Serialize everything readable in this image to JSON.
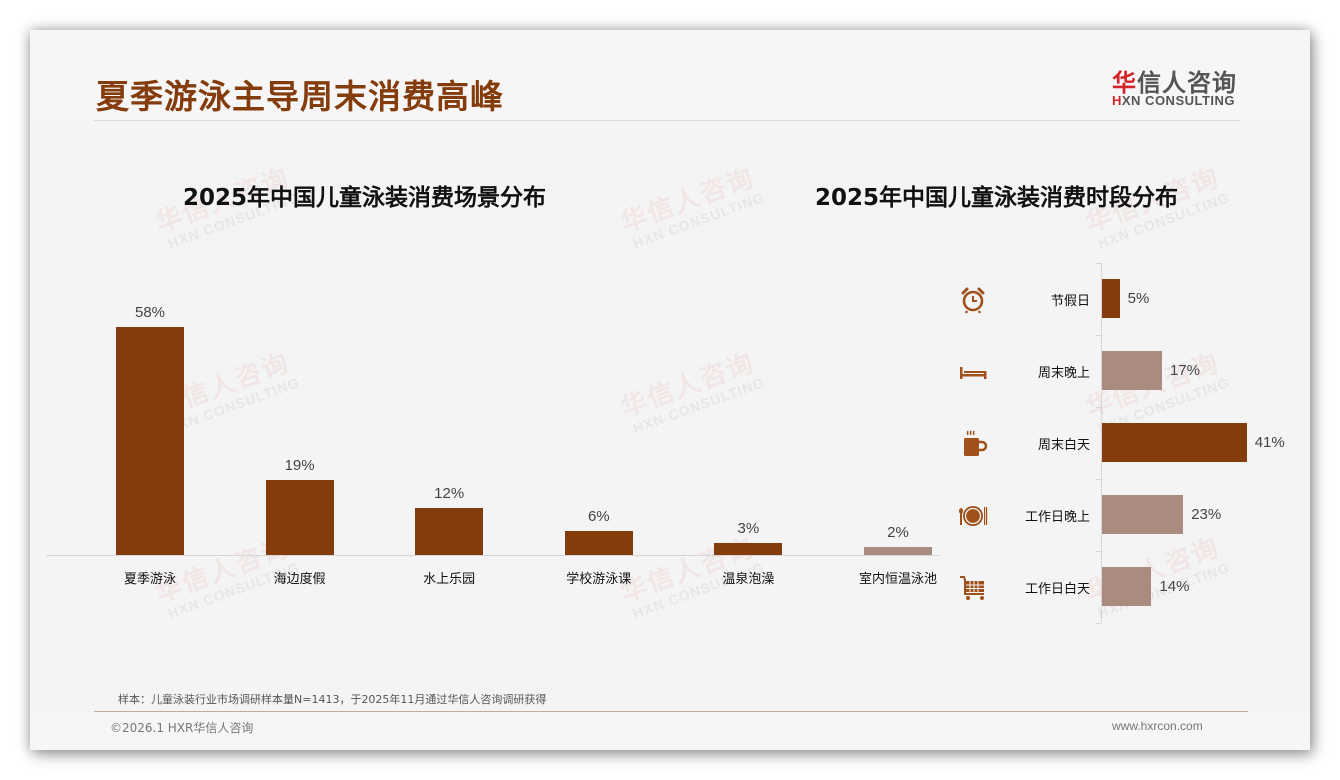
{
  "header": {
    "title": "夏季游泳主导周末消费高峰",
    "logo_cn_first": "华",
    "logo_cn_rest": "信人咨询",
    "logo_en_first": "H",
    "logo_en_rest": "XN CONSULTING"
  },
  "watermark": {
    "cn": "华信人咨询",
    "en": "HXN CONSULTING"
  },
  "colors": {
    "primary_bar": "#843c0c",
    "secondary_bar": "#a98b80",
    "title": "#843c0c",
    "logo_red": "#d3242a"
  },
  "chart_data": [
    {
      "type": "bar",
      "orientation": "vertical",
      "title": "2025年中国儿童泳装消费场景分布",
      "categories": [
        "夏季游泳",
        "海边度假",
        "水上乐园",
        "学校游泳课",
        "温泉泡澡",
        "室内恒温泳池"
      ],
      "values": [
        58,
        19,
        12,
        6,
        3,
        2
      ],
      "value_labels": [
        "58%",
        "19%",
        "12%",
        "6%",
        "3%",
        "2%"
      ],
      "bar_colors": [
        "#843c0c",
        "#843c0c",
        "#843c0c",
        "#843c0c",
        "#843c0c",
        "#a98b80"
      ],
      "xlabel": "",
      "ylabel": "",
      "unit": "%",
      "grid": false,
      "legend": null
    },
    {
      "type": "bar",
      "orientation": "horizontal",
      "title": "2025年中国儿童泳装消费时段分布",
      "categories": [
        "节假日",
        "周末晚上",
        "周末白天",
        "工作日晚上",
        "工作日白天"
      ],
      "values": [
        5,
        17,
        41,
        23,
        14
      ],
      "value_labels": [
        "5%",
        "17%",
        "41%",
        "23%",
        "14%"
      ],
      "icons": [
        "alarm-clock-icon",
        "bed-icon",
        "coffee-cup-icon",
        "dinner-plate-icon",
        "shopping-cart-icon"
      ],
      "bar_colors": [
        "#843c0c",
        "#a98b80",
        "#843c0c",
        "#a98b80",
        "#a98b80"
      ],
      "xlabel": "",
      "ylabel": "",
      "unit": "%",
      "grid": false,
      "legend": null
    }
  ],
  "footer": {
    "note": "样本：儿童泳装行业市场调研样本量N=1413，于2025年11月通过华信人咨询调研获得",
    "copyright": "©2026.1 HXR华信人咨询",
    "website": "www.hxrcon.com"
  }
}
